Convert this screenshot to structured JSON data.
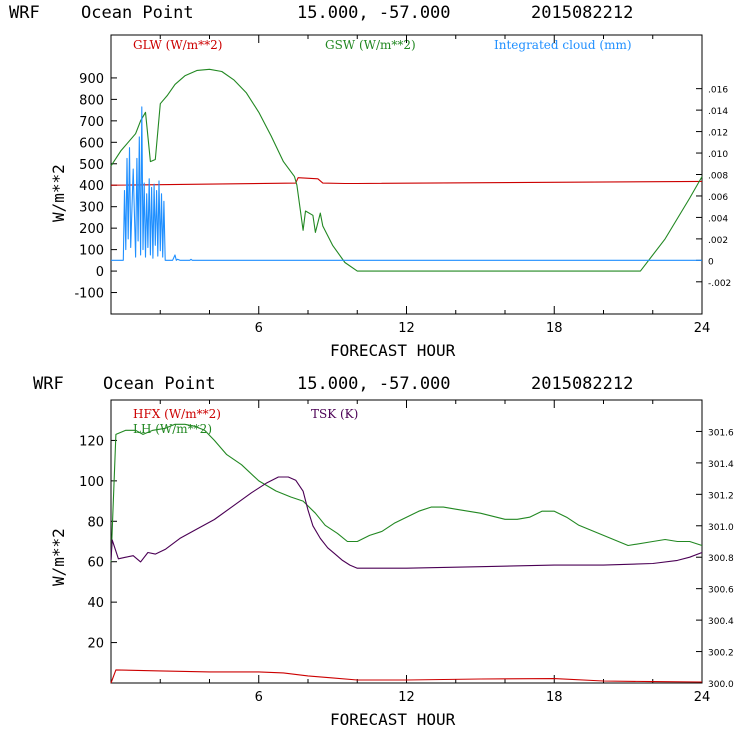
{
  "chart_data": [
    {
      "type": "line",
      "header": {
        "model": "WRF",
        "location": "Ocean Point",
        "coords": "15.000, -57.000",
        "init": "2015082212"
      },
      "xlabel": "FORECAST HOUR",
      "ylabel": "W/m**2",
      "xlim": [
        0,
        24
      ],
      "ylim": [
        -200,
        1100
      ],
      "xticks": [
        "6",
        "12",
        "18",
        "24"
      ],
      "yticks": [
        "900",
        "800",
        "700",
        "600",
        "500",
        "400",
        "300",
        "200",
        "100",
        "0",
        "-100"
      ],
      "y2lim": [
        -0.005,
        0.021
      ],
      "y2ticks": [
        ".016",
        ".014",
        ".012",
        ".010",
        ".008",
        ".006",
        ".004",
        ".002",
        "0",
        "-.002"
      ],
      "legend": [
        "GLW (W/m**2)",
        "GSW (W/m**2)",
        "Integrated cloud (mm)"
      ],
      "colors": {
        "GLW": "#cc0000",
        "GSW": "#228822",
        "cloud": "#1f8fff"
      },
      "series": [
        {
          "name": "GLW (W/m**2)",
          "axis": "left",
          "x": [
            0,
            7.5,
            7.6,
            8.4,
            8.6,
            9.5,
            10,
            24
          ],
          "y": [
            400,
            410,
            435,
            430,
            410,
            408,
            408,
            418
          ]
        },
        {
          "name": "GSW (W/m**2)",
          "axis": "left",
          "x": [
            0,
            0.4,
            1,
            1.2,
            1.4,
            1.6,
            1.8,
            2.0,
            2.3,
            2.6,
            3.0,
            3.5,
            4.0,
            4.5,
            5.0,
            5.5,
            6.0,
            6.5,
            7.0,
            7.45,
            7.5,
            7.55,
            7.8,
            7.9,
            8.2,
            8.3,
            8.5,
            8.6,
            9.0,
            9.5,
            10.0,
            21.5,
            22.5,
            23.5,
            24.0
          ],
          "y": [
            490,
            560,
            640,
            700,
            740,
            510,
            520,
            780,
            820,
            870,
            910,
            935,
            940,
            930,
            890,
            830,
            740,
            630,
            510,
            440,
            420,
            400,
            190,
            280,
            260,
            180,
            270,
            210,
            120,
            40,
            0,
            0,
            150,
            340,
            440
          ]
        },
        {
          "name": "Integrated cloud (mm)",
          "axis": "right",
          "x": [
            0,
            0.3,
            0.5,
            0.55,
            0.6,
            0.65,
            0.7,
            0.75,
            0.8,
            0.9,
            1.0,
            1.05,
            1.1,
            1.15,
            1.2,
            1.25,
            1.3,
            1.35,
            1.4,
            1.45,
            1.5,
            1.55,
            1.6,
            1.65,
            1.7,
            1.75,
            1.8,
            1.85,
            1.9,
            1.95,
            2.0,
            2.05,
            2.1,
            2.15,
            2.2,
            2.3,
            2.5,
            2.6,
            2.65,
            2.7,
            2.8,
            3.2,
            3.25,
            3.3,
            3.5,
            24
          ],
          "y": [
            0,
            0,
            0,
            0.0065,
            0.001,
            0.0095,
            0.002,
            0.0105,
            0.0012,
            0.0085,
            0.0003,
            0.0095,
            0.0018,
            0.0115,
            0.0005,
            0.0143,
            0.001,
            0.0072,
            0.0003,
            0.0062,
            0.0012,
            0.0076,
            0.0005,
            0.0068,
            0.0002,
            0.0071,
            0.0014,
            0.0065,
            0.0004,
            0.0074,
            0.0009,
            0.0062,
            0.0003,
            0.0055,
            0,
            0,
            0,
            0.0005,
            0,
            0.0001,
            0,
            0,
            0.0001,
            0,
            0,
            0
          ]
        }
      ]
    },
    {
      "type": "line",
      "header": {
        "model": "WRF",
        "location": "Ocean Point",
        "coords": "15.000, -57.000",
        "init": "2015082212"
      },
      "xlabel": "FORECAST HOUR",
      "ylabel": "W/m**2",
      "xlim": [
        0,
        24
      ],
      "ylim": [
        0,
        140
      ],
      "xticks": [
        "6",
        "12",
        "18",
        "24"
      ],
      "yticks": [
        "120",
        "100",
        "80",
        "60",
        "40",
        "20"
      ],
      "y2lim": [
        300.0,
        301.8
      ],
      "y2ticks": [
        "301.6",
        "301.4",
        "301.2",
        "301.0",
        "300.8",
        "300.6",
        "300.4",
        "300.2",
        "300.0"
      ],
      "legend": [
        "HFX (W/m**2)",
        "LH (W/m**2)",
        "TSK (K)"
      ],
      "colors": {
        "HFX": "#cc0000",
        "LH": "#228822",
        "TSK": "#4b0055"
      },
      "series": [
        {
          "name": "HFX (W/m**2)",
          "axis": "left",
          "x": [
            0,
            0.2,
            2,
            4,
            6,
            7,
            8,
            9,
            10,
            12,
            15,
            18,
            20,
            22,
            24
          ],
          "y": [
            0,
            6.5,
            6,
            5.5,
            5.5,
            5,
            3.5,
            2.5,
            1.5,
            1.5,
            2,
            2.2,
            1,
            0.7,
            0.5
          ]
        },
        {
          "name": "LH (W/m**2)",
          "axis": "left",
          "x": [
            0,
            0.2,
            0.6,
            1,
            1.3,
            1.7,
            2.2,
            2.6,
            3,
            3.4,
            3.8,
            4.2,
            4.7,
            5.3,
            6,
            6.7,
            7.3,
            7.8,
            8.3,
            8.7,
            9.2,
            9.6,
            10,
            10.5,
            11,
            11.5,
            12,
            12.5,
            13,
            13.5,
            14,
            15,
            16,
            16.5,
            17,
            17.5,
            18,
            18.5,
            19,
            20,
            21,
            22,
            22.5,
            23,
            23.5,
            24
          ],
          "y": [
            60,
            123,
            125,
            125,
            123,
            125,
            126,
            128,
            128,
            127,
            125,
            120,
            113,
            108,
            100,
            95,
            92,
            90,
            84,
            78,
            74,
            70,
            70,
            73,
            75,
            79,
            82,
            85,
            87,
            87,
            86,
            84,
            81,
            81,
            82,
            85,
            85,
            82,
            78,
            73,
            68,
            70,
            71,
            70,
            70,
            68
          ]
        },
        {
          "name": "TSK (K)",
          "axis": "right",
          "x": [
            0,
            0.05,
            0.3,
            0.6,
            0.9,
            1.2,
            1.5,
            1.8,
            2.2,
            2.8,
            3.5,
            4.2,
            5,
            5.7,
            6.3,
            6.8,
            7.2,
            7.5,
            7.8,
            8.0,
            8.2,
            8.5,
            8.8,
            9.1,
            9.4,
            9.7,
            10,
            12,
            15,
            18,
            20,
            22,
            23,
            23.5,
            24
          ],
          "y": [
            300.78,
            300.91,
            300.79,
            300.8,
            300.81,
            300.77,
            300.83,
            300.82,
            300.85,
            300.92,
            300.98,
            301.04,
            301.13,
            301.21,
            301.27,
            301.31,
            301.31,
            301.29,
            301.22,
            301.1,
            301.0,
            300.92,
            300.86,
            300.82,
            300.78,
            300.75,
            300.73,
            300.73,
            300.74,
            300.75,
            300.75,
            300.76,
            300.78,
            300.8,
            300.83
          ]
        }
      ]
    }
  ]
}
